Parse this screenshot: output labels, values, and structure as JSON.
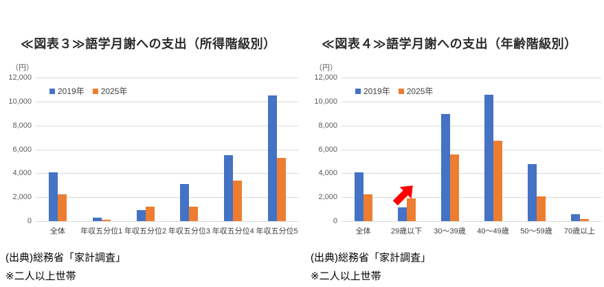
{
  "accent_colors": {
    "series_2019": "#4472C4",
    "series_2025": "#ED7D31",
    "gridline": "#D9D9D9",
    "arrow": "#FF0000"
  },
  "chart_data": [
    {
      "type": "bar",
      "title": "≪図表３≫語学月謝への支出（所得階級別）",
      "unit_label": "（円）",
      "categories": [
        "全体",
        "年収五分位1",
        "年収五分位2",
        "年収五分位3",
        "年収五分位4",
        "年収五分位5"
      ],
      "series": [
        {
          "name": "2019年",
          "color": "#4472C4",
          "values": [
            4100,
            300,
            900,
            3100,
            5500,
            10500
          ]
        },
        {
          "name": "2025年",
          "color": "#ED7D31",
          "values": [
            2250,
            100,
            1200,
            1200,
            3400,
            5300
          ]
        }
      ],
      "ylim": [
        0,
        12000
      ],
      "ytick_step": 2000,
      "grid": true,
      "legend_position": "top-left-inside",
      "source_note": "(出典)総務省「家計調査」",
      "footnote": "※二人以上世帯"
    },
    {
      "type": "bar",
      "title": "≪図表４≫語学月謝への支出（年齢階級別）",
      "unit_label": "（円）",
      "categories": [
        "全体",
        "29歳以下",
        "30～39歳",
        "40～49歳",
        "50～59歳",
        "70歳以上"
      ],
      "series": [
        {
          "name": "2019年",
          "color": "#4472C4",
          "values": [
            4100,
            1150,
            8950,
            10550,
            4750,
            600
          ]
        },
        {
          "name": "2025年",
          "color": "#ED7D31",
          "values": [
            2250,
            1900,
            5550,
            6700,
            2050,
            200
          ]
        }
      ],
      "ylim": [
        0,
        12000
      ],
      "ytick_step": 2000,
      "grid": true,
      "legend_position": "top-left-inside",
      "annotation": {
        "type": "arrow-up-right",
        "color": "#FF0000",
        "target_category": "29歳以下"
      },
      "source_note": "(出典)総務省「家計調査」",
      "footnote": "※二人以上世帯"
    }
  ]
}
